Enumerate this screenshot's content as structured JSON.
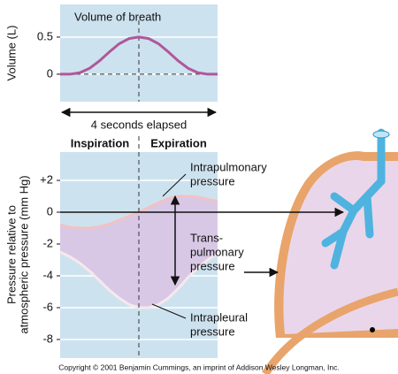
{
  "chart_data": [
    {
      "type": "line",
      "title": "Volume of breath",
      "ylabel": "Volume (L)",
      "x": [
        0,
        0.25,
        0.5,
        0.75,
        1,
        1.25,
        1.5,
        1.75,
        2,
        2.25,
        2.5,
        2.75,
        3,
        3.25,
        3.5,
        3.75,
        4
      ],
      "values": [
        0,
        0,
        0.02,
        0.08,
        0.18,
        0.3,
        0.41,
        0.48,
        0.5,
        0.48,
        0.41,
        0.3,
        0.18,
        0.08,
        0.02,
        0,
        0
      ],
      "color": "#b0579a",
      "background": "#cde2ef",
      "xlim": [
        0,
        4
      ],
      "ylim": [
        -0.37,
        0.94
      ],
      "yticks": [
        0,
        0.5
      ],
      "grid": true,
      "x_span_label": "4 seconds elapsed"
    },
    {
      "type": "line",
      "phases": [
        "Inspiration",
        "Expiration"
      ],
      "ylabel": [
        "Pressure relative to",
        "atmospheric pressure (mm Hg)"
      ],
      "x": [
        0,
        0.25,
        0.5,
        0.75,
        1,
        1.25,
        1.5,
        1.75,
        2,
        2.25,
        2.5,
        2.75,
        3,
        3.25,
        3.5,
        3.75,
        4
      ],
      "series": [
        {
          "color": "#f1c2c4",
          "values": [
            -0.8,
            -0.95,
            -1,
            -1,
            -0.9,
            -0.75,
            -0.5,
            -0.25,
            0,
            0.3,
            0.6,
            0.85,
            1,
            1,
            0.95,
            0.8,
            0.7
          ]
        },
        {
          "color": "#f7e8ec",
          "values": [
            -2.5,
            -2.8,
            -3.2,
            -3.7,
            -4.3,
            -4.9,
            -5.4,
            -5.8,
            -6,
            -6,
            -5.8,
            -5.4,
            -4.8,
            -4.1,
            -3.5,
            -3,
            -2.6
          ]
        }
      ],
      "fill_color": "#d8c8e6",
      "background": "#cde2ef",
      "xlim": [
        0,
        4
      ],
      "ylim": [
        -9.17,
        3.78
      ],
      "yticks": [
        {
          "value": 2,
          "label": "+2"
        },
        0,
        -2,
        -4,
        -6,
        -8
      ],
      "grid": true,
      "annotations": [
        [
          "Intrapulmonary",
          "pressure"
        ],
        [
          "Trans-",
          "pulmonary",
          "pressure"
        ],
        [
          "Intrapleural",
          "pressure"
        ]
      ]
    }
  ],
  "copyright": "Copyright © 2001 Benjamin Cummings, an imprint of Addison Wesley Longman, Inc."
}
